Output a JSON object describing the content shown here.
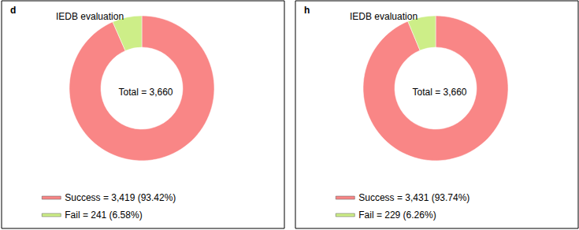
{
  "chart_data": [
    {
      "type": "pie",
      "title": "IEDB evaluation",
      "annotations": [
        "d",
        "Total = 3,660"
      ],
      "categories": [
        "Success = 3,419 (93.42%)",
        "Fail = 241 (6.58%)"
      ],
      "values": [
        3419,
        241
      ],
      "colors": [
        "#f98686",
        "#cdee88"
      ],
      "legend": "bottom"
    },
    {
      "type": "pie",
      "title": "IEDB evaluation",
      "annotations": [
        "h",
        "Total = 3,660"
      ],
      "categories": [
        "Success = 3,431 (93.74%)",
        "Fail = 229 (6.26%)"
      ],
      "values": [
        3431,
        229
      ],
      "colors": [
        "#f98686",
        "#cdee88"
      ],
      "legend": "bottom"
    }
  ]
}
